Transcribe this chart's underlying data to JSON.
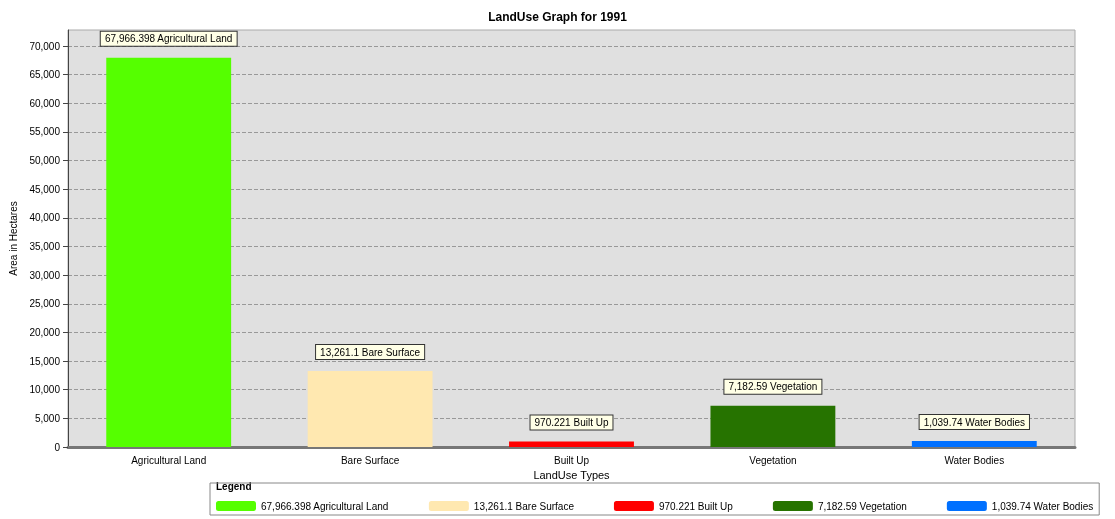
{
  "chart_data": {
    "type": "bar",
    "title": "LandUse Graph for 1991",
    "xlabel": "LandUse Types",
    "ylabel": "Area in Hectares",
    "legend_title": "Legend",
    "categories": [
      "Agricultural Land",
      "Bare Surface",
      "Built Up",
      "Vegetation",
      "Water Bodies"
    ],
    "series": [
      {
        "name": "67,966.398 Agricultural Land",
        "color": "#55ff00",
        "values": [
          67966.398,
          null,
          null,
          null,
          null
        ],
        "value_labels": [
          "67,966.398 Agricultural Land",
          null,
          null,
          null,
          null
        ]
      },
      {
        "name": "13,261.1 Bare Surface",
        "color": "#ffe8b0",
        "values": [
          null,
          13261.1,
          null,
          null,
          null
        ],
        "value_labels": [
          null,
          "13,261.1 Bare Surface",
          null,
          null,
          null
        ]
      },
      {
        "name": "970.221 Built Up",
        "color": "#ff0000",
        "values": [
          null,
          null,
          970.221,
          null,
          null
        ],
        "value_labels": [
          null,
          null,
          "970.221 Built Up",
          null,
          null
        ]
      },
      {
        "name": "7,182.59 Vegetation",
        "color": "#267300",
        "values": [
          null,
          null,
          null,
          7182.59,
          null
        ],
        "value_labels": [
          null,
          null,
          null,
          "7,182.59 Vegetation",
          null
        ]
      },
      {
        "name": "1,039.74 Water Bodies",
        "color": "#0070ff",
        "values": [
          null,
          null,
          null,
          null,
          1039.74
        ],
        "value_labels": [
          null,
          null,
          null,
          null,
          "1,039.74 Water Bodies"
        ]
      }
    ],
    "ylim": [
      0,
      72800
    ],
    "yticks": [
      0,
      {
        "value": 5000,
        "label": "5,000"
      },
      {
        "value": 10000,
        "label": "10,000"
      },
      {
        "value": 15000,
        "label": "15,000"
      },
      {
        "value": 20000,
        "label": "20,000"
      },
      {
        "value": 25000,
        "label": "25,000"
      },
      {
        "value": 30000,
        "label": "30,000"
      },
      {
        "value": 35000,
        "label": "35,000"
      },
      {
        "value": 40000,
        "label": "40,000"
      },
      {
        "value": 45000,
        "label": "45,000"
      },
      {
        "value": 50000,
        "label": "50,000"
      },
      {
        "value": 55000,
        "label": "55,000"
      },
      {
        "value": 60000,
        "label": "60,000"
      },
      {
        "value": 65000,
        "label": "65,000"
      },
      {
        "value": 70000,
        "label": "70,000"
      }
    ],
    "grid": "y",
    "legend": "bottom"
  }
}
